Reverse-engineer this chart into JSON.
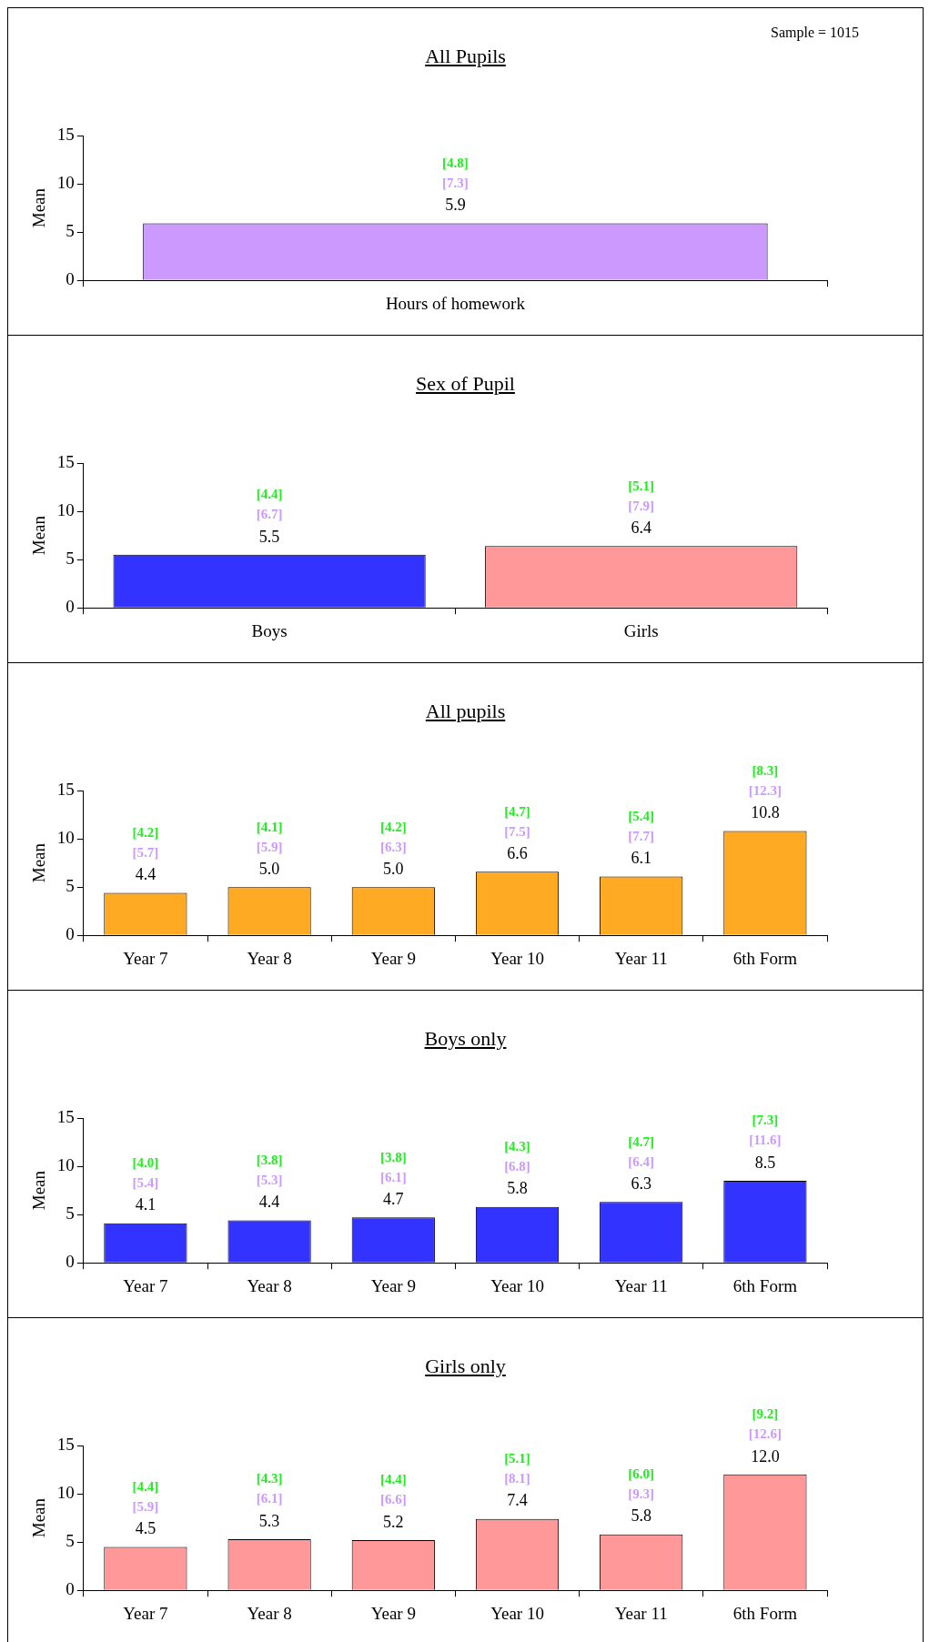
{
  "chart_data": [
    {
      "type": "bar",
      "title": "All Pupils",
      "ylabel": "Mean",
      "categories": [
        "Hours of homework"
      ],
      "values": [
        5.9
      ],
      "value_labels": [
        "5.9"
      ],
      "color": "#cc99ff",
      "ylim": [
        0,
        15
      ],
      "yticks": [
        0,
        5,
        10,
        15
      ],
      "legend": false,
      "annotations": [
        "[4.8]",
        "[7.3]",
        "Sample = 1015"
      ]
    },
    {
      "type": "bar",
      "title": "Sex of Pupil",
      "ylabel": "Mean",
      "categories": [
        "Boys",
        "Girls"
      ],
      "values": [
        5.5,
        6.4
      ],
      "value_labels": [
        "5.5",
        "6.4"
      ],
      "colors": [
        "#3333ff",
        "#ff9999"
      ],
      "ylim": [
        0,
        15
      ],
      "yticks": [
        0,
        5,
        10,
        15
      ],
      "legend": false,
      "annotations": [
        "[4.4]",
        "[6.7]",
        "[5.1]",
        "[7.9]"
      ]
    },
    {
      "type": "bar",
      "title": "All pupils",
      "ylabel": "Mean",
      "categories": [
        "Year 7",
        "Year 8",
        "Year 9",
        "Year 10",
        "Year 11",
        "6th Form"
      ],
      "values": [
        4.4,
        5.0,
        5.0,
        6.6,
        6.1,
        10.8
      ],
      "value_labels": [
        "4.4",
        "5.0",
        "5.0",
        "6.6",
        "6.1",
        "10.8"
      ],
      "color": "#ffaa22",
      "ylim": [
        0,
        15
      ],
      "yticks": [
        0,
        5,
        10,
        15
      ],
      "legend": false,
      "annotations": [
        "[4.2]",
        "[5.7]",
        "[4.1]",
        "[5.9]",
        "[4.2]",
        "[6.3]",
        "[4.7]",
        "[7.5]",
        "[5.4]",
        "[7.7]",
        "[8.3]",
        "[12.3]"
      ]
    },
    {
      "type": "bar",
      "title": "Boys only",
      "ylabel": "Mean",
      "categories": [
        "Year 7",
        "Year 8",
        "Year 9",
        "Year 10",
        "Year 11",
        "6th Form"
      ],
      "values": [
        4.1,
        4.4,
        4.7,
        5.8,
        6.3,
        8.5
      ],
      "value_labels": [
        "4.1",
        "4.4",
        "4.7",
        "5.8",
        "6.3",
        "8.5"
      ],
      "color": "#3333ff",
      "ylim": [
        0,
        15
      ],
      "yticks": [
        0,
        5,
        10,
        15
      ],
      "legend": false,
      "annotations": [
        "[4.0]",
        "[5.4]",
        "[3.8]",
        "[5.3]",
        "[3.8]",
        "[6.1]",
        "[4.3]",
        "[6.8]",
        "[4.7]",
        "[6.4]",
        "[7.3]",
        "[11.6]"
      ]
    },
    {
      "type": "bar",
      "title": "Girls only",
      "ylabel": "Mean",
      "categories": [
        "Year 7",
        "Year 8",
        "Year 9",
        "Year 10",
        "Year 11",
        "6th Form"
      ],
      "values": [
        4.5,
        5.3,
        5.2,
        7.4,
        5.8,
        12.0
      ],
      "value_labels": [
        "4.5",
        "5.3",
        "5.2",
        "7.4",
        "5.8",
        "12.0"
      ],
      "color": "#ff9999",
      "ylim": [
        0,
        15
      ],
      "yticks": [
        0,
        5,
        10,
        15
      ],
      "legend": false,
      "annotations": [
        "[4.4]",
        "[5.9]",
        "[4.3]",
        "[6.1]",
        "[4.4]",
        "[6.6]",
        "[5.1]",
        "[8.1]",
        "[6.0]",
        "[9.3]",
        "[9.2]",
        "[12.6]"
      ]
    }
  ]
}
